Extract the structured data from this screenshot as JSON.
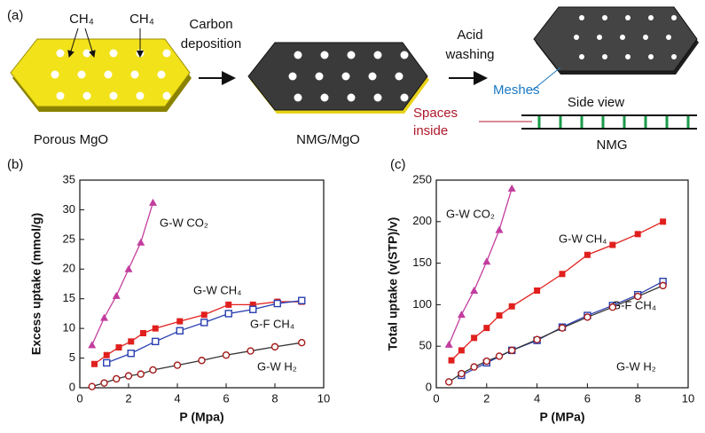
{
  "schematic": {
    "panel": "(a)",
    "gas_labels": [
      "CH₄",
      "CH₄"
    ],
    "step1": [
      "Carbon",
      "deposition"
    ],
    "step2": [
      "Acid",
      "washing"
    ],
    "stages": [
      "Porous MgO",
      "NMG/MgO",
      "NMG"
    ],
    "meshes": "Meshes",
    "spaces": [
      "Spaces",
      "inside"
    ],
    "side_view": "Side view"
  },
  "chart_data": [
    {
      "type": "line",
      "panel": "(b)",
      "x_label": "P (Mpa)",
      "y_label": "Excess uptake (mmol/g)",
      "xlim": [
        0,
        10
      ],
      "xticks": [
        0,
        2,
        4,
        6,
        8,
        10
      ],
      "ylim": [
        0,
        35
      ],
      "yticks": [
        0,
        5,
        10,
        15,
        20,
        25,
        30,
        35
      ],
      "series": [
        {
          "name": "G-W CO₂",
          "color": "#c23d9e",
          "marker": "triangle",
          "x": [
            0.5,
            1,
            1.5,
            2,
            2.5,
            3
          ],
          "values": [
            7.2,
            11.8,
            15.5,
            20,
            24.5,
            31.2
          ]
        },
        {
          "name": "G-W CH₄",
          "color": "#e0201e",
          "marker": "filled-square",
          "x": [
            0.6,
            1.1,
            1.6,
            2.1,
            2.6,
            3.1,
            4.1,
            5.1,
            6.1,
            7.1,
            8.1,
            9.1
          ],
          "values": [
            4,
            5.5,
            6.8,
            7.8,
            9.2,
            10,
            11.2,
            12.3,
            14,
            14,
            14.5,
            14.5
          ]
        },
        {
          "name": "G-F CH₄",
          "color": "#2a3fb0",
          "marker": "open-square",
          "x": [
            1.1,
            2.1,
            3.1,
            4.1,
            5.1,
            6.1,
            7.1,
            8.1,
            9.1
          ],
          "values": [
            4.2,
            5.8,
            7.8,
            9.6,
            11,
            12.5,
            13.2,
            14.2,
            14.7
          ]
        },
        {
          "name": "G-W H₂",
          "color": "#a31a1a",
          "marker": "open-circle",
          "x": [
            0.5,
            1,
            1.5,
            2,
            2.5,
            3,
            4,
            5,
            6,
            7,
            8,
            9.1
          ],
          "values": [
            0.2,
            0.8,
            1.5,
            2,
            2.3,
            3,
            3.8,
            4.6,
            5.5,
            6.2,
            6.9,
            7.6
          ]
        }
      ]
    },
    {
      "type": "line",
      "panel": "(c)",
      "x_label": "P (MPa)",
      "y_label": "Total uptake (v(STP)/v)",
      "xlim": [
        0,
        10
      ],
      "xticks": [
        0,
        2,
        4,
        6,
        8,
        10
      ],
      "ylim": [
        0,
        250
      ],
      "yticks": [
        0,
        50,
        100,
        150,
        200,
        250
      ],
      "series": [
        {
          "name": "G-W CO₂",
          "color": "#c23d9e",
          "marker": "triangle",
          "x": [
            0.5,
            1,
            1.5,
            2,
            2.5,
            3
          ],
          "values": [
            52,
            88,
            117,
            152,
            190,
            240
          ]
        },
        {
          "name": "G-W CH₄",
          "color": "#e0201e",
          "marker": "filled-square",
          "x": [
            0.6,
            1,
            1.5,
            2,
            2.5,
            3,
            4,
            5,
            6,
            7,
            8,
            9
          ],
          "values": [
            33,
            45,
            60,
            72,
            87,
            98,
            117,
            137,
            160,
            172,
            185,
            200
          ]
        },
        {
          "name": "G-F CH₄",
          "color": "#2a3fb0",
          "marker": "open-square",
          "x": [
            1,
            2,
            3,
            4,
            5,
            6,
            7,
            8,
            9
          ],
          "values": [
            15,
            30,
            45,
            57,
            73,
            87,
            99,
            112,
            128
          ]
        },
        {
          "name": "G-W H₂",
          "color": "#a31a1a",
          "marker": "open-circle",
          "x": [
            0.5,
            1,
            1.5,
            2,
            2.5,
            3,
            4,
            5,
            6,
            7,
            8,
            9
          ],
          "values": [
            7,
            17,
            25,
            32,
            38,
            45,
            58,
            72,
            85,
            97,
            110,
            123
          ]
        }
      ]
    }
  ]
}
